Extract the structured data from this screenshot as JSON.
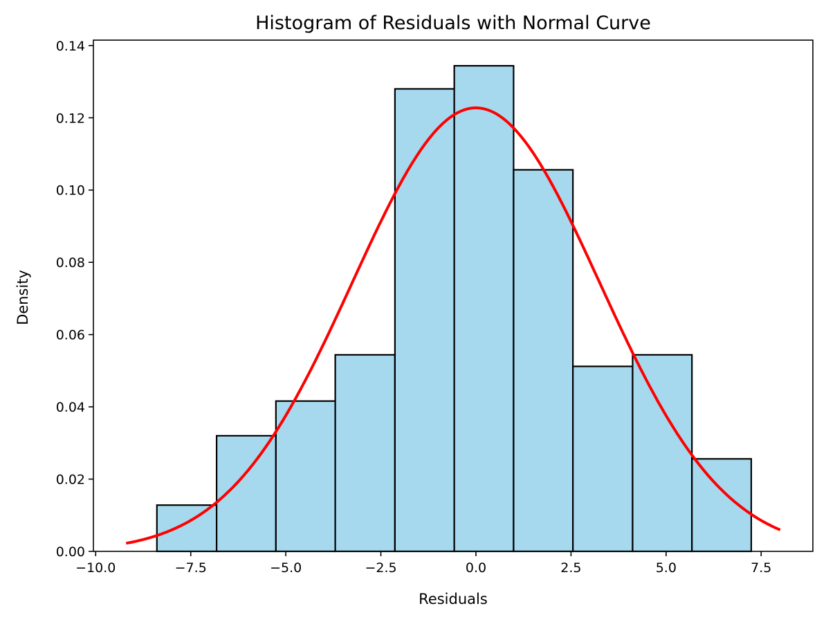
{
  "chart_data": {
    "type": "bar",
    "title": "Histogram of Residuals with Normal Curve",
    "xlabel": "Residuals",
    "ylabel": "Density",
    "xlim": [
      -10.06,
      8.86
    ],
    "ylim": [
      0,
      0.1415
    ],
    "xticks": [
      -10.0,
      -7.5,
      -5.0,
      -2.5,
      0.0,
      2.5,
      5.0,
      7.5
    ],
    "xtick_labels": [
      "−10.0",
      "−7.5",
      "−5.0",
      "−2.5",
      "0.0",
      "2.5",
      "5.0",
      "7.5"
    ],
    "yticks": [
      0,
      0.02,
      0.04,
      0.06,
      0.08,
      0.1,
      0.12,
      0.14
    ],
    "ytick_labels": [
      "0.00",
      "0.02",
      "0.04",
      "0.06",
      "0.08",
      "0.10",
      "0.12",
      "0.14"
    ],
    "grid": false,
    "histogram": {
      "bin_edges": [
        -8.39,
        -6.82,
        -5.26,
        -3.7,
        -2.13,
        -0.57,
        0.99,
        2.55,
        4.12,
        5.68,
        7.24
      ],
      "density": [
        0.0128,
        0.032,
        0.0416,
        0.0544,
        0.128,
        0.1344,
        0.1056,
        0.0512,
        0.0544,
        0.0256
      ],
      "fill": "#a6d8ee",
      "edge": "#000000"
    },
    "normal_curve": {
      "mean": 0.0,
      "std": 3.25,
      "x_range": [
        -9.2,
        8.0
      ],
      "color": "#ff0000"
    }
  }
}
